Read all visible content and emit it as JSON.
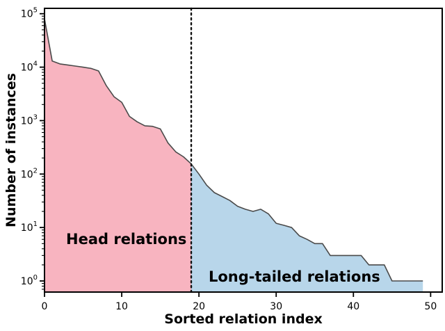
{
  "chart_data": {
    "type": "area",
    "title": "",
    "xlabel": "Sorted relation index",
    "ylabel": "Number of instances",
    "x": [
      0,
      1,
      2,
      3,
      4,
      5,
      6,
      7,
      8,
      9,
      10,
      11,
      12,
      13,
      14,
      15,
      16,
      17,
      18,
      19,
      20,
      21,
      22,
      23,
      24,
      25,
      26,
      27,
      28,
      29,
      30,
      31,
      32,
      33,
      34,
      35,
      36,
      37,
      38,
      39,
      40,
      41,
      42,
      43,
      44,
      45,
      46,
      47,
      48,
      49
    ],
    "values": [
      80000,
      13000,
      11500,
      11000,
      10500,
      10000,
      9500,
      8500,
      4500,
      2800,
      2200,
      1200,
      950,
      800,
      780,
      700,
      380,
      260,
      210,
      155,
      100,
      62,
      45,
      38,
      32,
      25,
      22,
      20,
      22,
      18,
      12,
      11,
      10,
      7,
      6,
      5,
      5,
      3,
      3,
      3,
      3,
      3,
      2,
      2,
      2,
      1,
      1,
      1,
      1,
      1
    ],
    "xlim": [
      0,
      51.5
    ],
    "ylim_log": [
      0.62,
      126000
    ],
    "x_ticks": [
      0,
      10,
      20,
      30,
      40,
      50
    ],
    "y_tick_base": "10",
    "y_tick_exponents": [
      0,
      1,
      2,
      3,
      4,
      5
    ],
    "divider_x": 19,
    "grid": false,
    "legend": "none",
    "regions": [
      {
        "name": "Head relations",
        "range": [
          0,
          19
        ],
        "fill": "#f8b4c0"
      },
      {
        "name": "Long-tailed relations",
        "range": [
          19,
          49
        ],
        "fill": "#b8d6ea"
      }
    ],
    "line_color": "#4a4a4a",
    "divider_color": "#111111",
    "axis_color": "#000000"
  }
}
